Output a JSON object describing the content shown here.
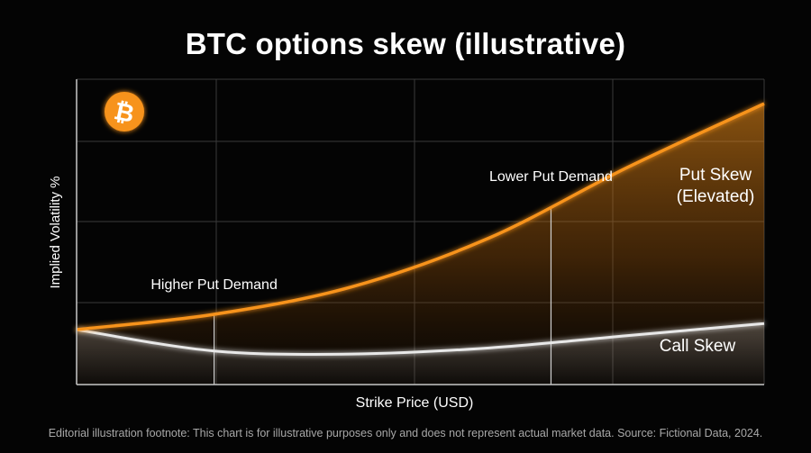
{
  "chart_data": {
    "type": "area",
    "title": "BTC options skew (illustrative)",
    "xlabel": "Strike Price (USD)",
    "ylabel": "Implied Volatility %",
    "x": [
      0,
      0.2,
      0.4,
      0.6,
      0.8,
      1.0
    ],
    "xlim": [
      0,
      1
    ],
    "ylim": [
      0,
      1
    ],
    "grid": true,
    "series": [
      {
        "name": "Put Skew (Elevated)",
        "color": "#f7931a",
        "values": [
          0.18,
          0.23,
          0.32,
          0.48,
          0.71,
          0.92
        ]
      },
      {
        "name": "Call Skew",
        "color": "#e8e8e8",
        "values": [
          0.18,
          0.11,
          0.1,
          0.12,
          0.16,
          0.2
        ]
      }
    ],
    "annotations": [
      {
        "text": "Higher Put Demand",
        "x": 0.2
      },
      {
        "text": "Lower Put Demand",
        "x": 0.69
      }
    ],
    "series_labels": {
      "put_line1": "Put Skew",
      "put_line2": "(Elevated)",
      "call": "Call Skew"
    },
    "icon": "bitcoin-icon",
    "icon_glyph": "₿",
    "accent_color": "#f7931a",
    "footnote": "Editorial illustration footnote: This chart is for illustrative purposes only and does not represent actual market data. Source: Fictional Data, 2024."
  }
}
